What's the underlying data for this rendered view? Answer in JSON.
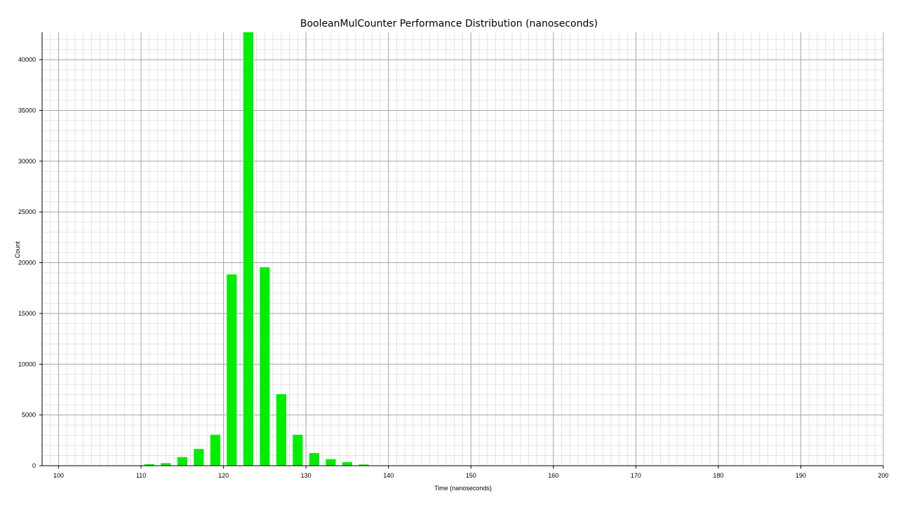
{
  "chart_data": {
    "type": "bar",
    "title": "BooleanMulCounter  Performance Distribution (nanoseconds)",
    "xlabel": "Time (nanoseconds)",
    "ylabel": "Count",
    "xlim": [
      98,
      200
    ],
    "ylim": [
      0,
      42700
    ],
    "x_ticks": [
      100,
      110,
      120,
      130,
      140,
      150,
      160,
      170,
      180,
      190,
      200
    ],
    "y_ticks": [
      0,
      5000,
      10000,
      15000,
      20000,
      25000,
      30000,
      35000,
      40000
    ],
    "bar_width": 1.2,
    "grid": true,
    "minor_grid": true,
    "bar_color": "#00ee00",
    "x": [
      111,
      113,
      115,
      117,
      119,
      121,
      123,
      125,
      127,
      129,
      131,
      133,
      135,
      137
    ],
    "values": [
      150,
      250,
      850,
      1650,
      3050,
      18850,
      42700,
      19550,
      7050,
      3050,
      1250,
      650,
      350,
      120
    ]
  }
}
